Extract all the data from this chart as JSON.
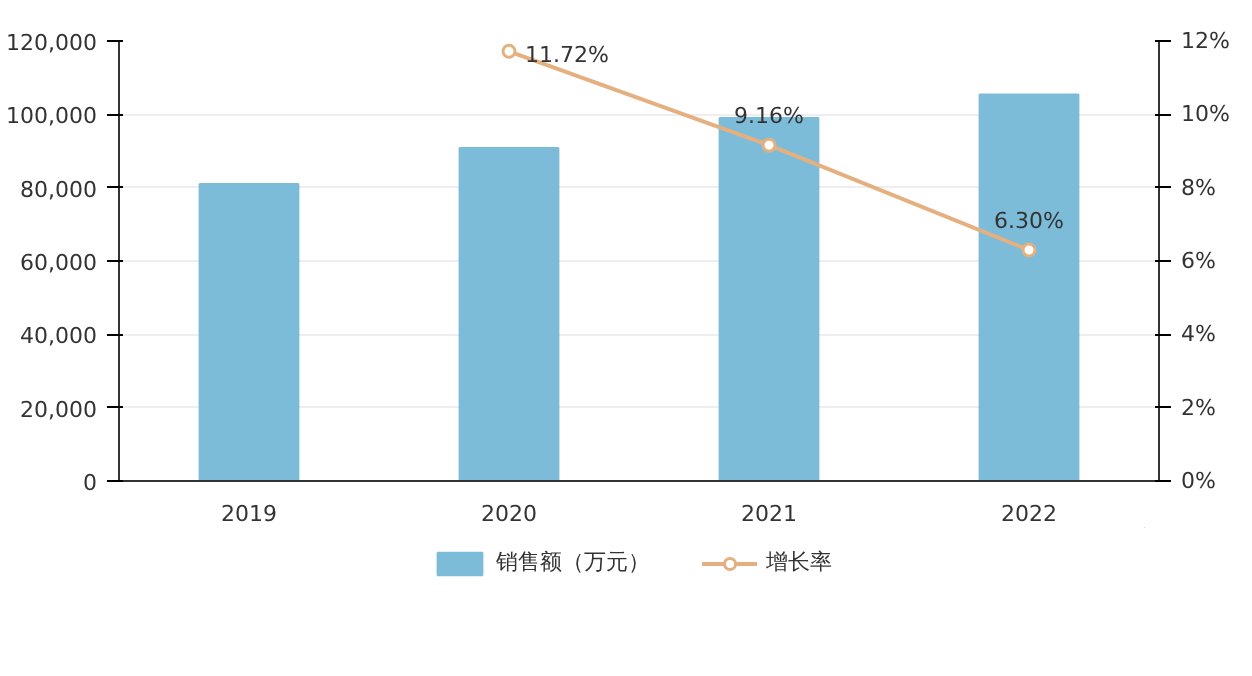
{
  "chart_data": {
    "type": "bar",
    "categories": [
      "2019",
      "2020",
      "2021",
      "2022"
    ],
    "series": [
      {
        "name": "销售额（万元）",
        "color": "#7dbcd9",
        "values": [
          81000,
          90800,
          99000,
          105400
        ]
      },
      {
        "name": "增长率",
        "type": "line",
        "axis": "y2",
        "color": "#e5b07f",
        "marker": "circle",
        "values": [
          null,
          11.72,
          9.16,
          6.3
        ],
        "value_labels": [
          null,
          "11.72%",
          "9.16%",
          "6.30%"
        ]
      }
    ],
    "ylim": [
      0,
      120000
    ],
    "yticks": [
      {
        "value": 0,
        "label": "0"
      },
      {
        "value": 20000,
        "label": "20,000"
      },
      {
        "value": 40000,
        "label": "40,000"
      },
      {
        "value": 60000,
        "label": "60,000"
      },
      {
        "value": 80000,
        "label": "80,000"
      },
      {
        "value": 100000,
        "label": "100,000"
      },
      {
        "value": 120000,
        "label": "120,000"
      }
    ],
    "y2lim": [
      0,
      12
    ],
    "y2ticks": [
      {
        "value": 0,
        "label": "0%"
      },
      {
        "value": 2,
        "label": "2%"
      },
      {
        "value": 4,
        "label": "4%"
      },
      {
        "value": 6,
        "label": "6%"
      },
      {
        "value": 8,
        "label": "8%"
      },
      {
        "value": 10,
        "label": "10%"
      },
      {
        "value": 12,
        "label": "12%"
      }
    ],
    "grid": "y",
    "legend": "bottom"
  }
}
